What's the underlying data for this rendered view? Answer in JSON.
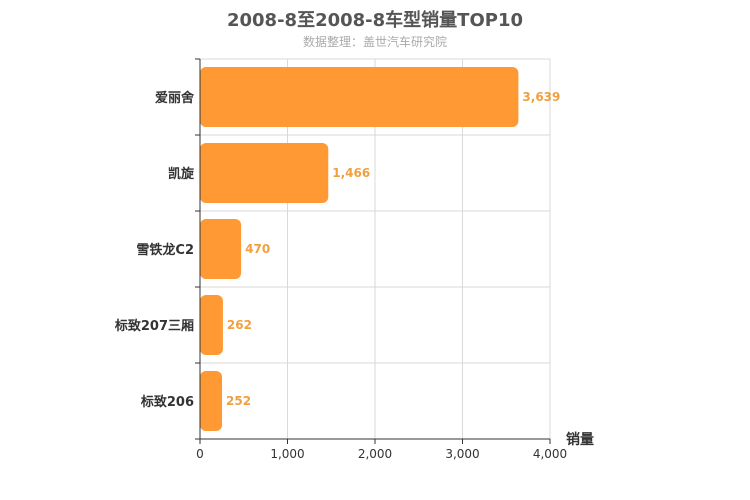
{
  "chart_data": {
    "type": "bar",
    "orientation": "horizontal",
    "title": "2008-8至2008-8车型销量TOP10",
    "subtitle": "数据整理：盖世汽车研究院",
    "categories": [
      "爱丽舍",
      "凯旋",
      "雪铁龙C2",
      "标致207三厢",
      "标致206"
    ],
    "values": [
      3639,
      1466,
      470,
      262,
      252
    ],
    "value_labels": [
      "3,639",
      "1,466",
      "470",
      "262",
      "252"
    ],
    "xlabel": "销量",
    "ylabel": "",
    "xlim": [
      0,
      4000
    ],
    "x_ticks": [
      0,
      1000,
      2000,
      3000,
      4000
    ],
    "x_tick_labels": [
      "0",
      "1,000",
      "2,000",
      "3,000",
      "4,000"
    ],
    "grid": true,
    "bar_color": "#ff9933",
    "label_color": "#f0a040"
  }
}
